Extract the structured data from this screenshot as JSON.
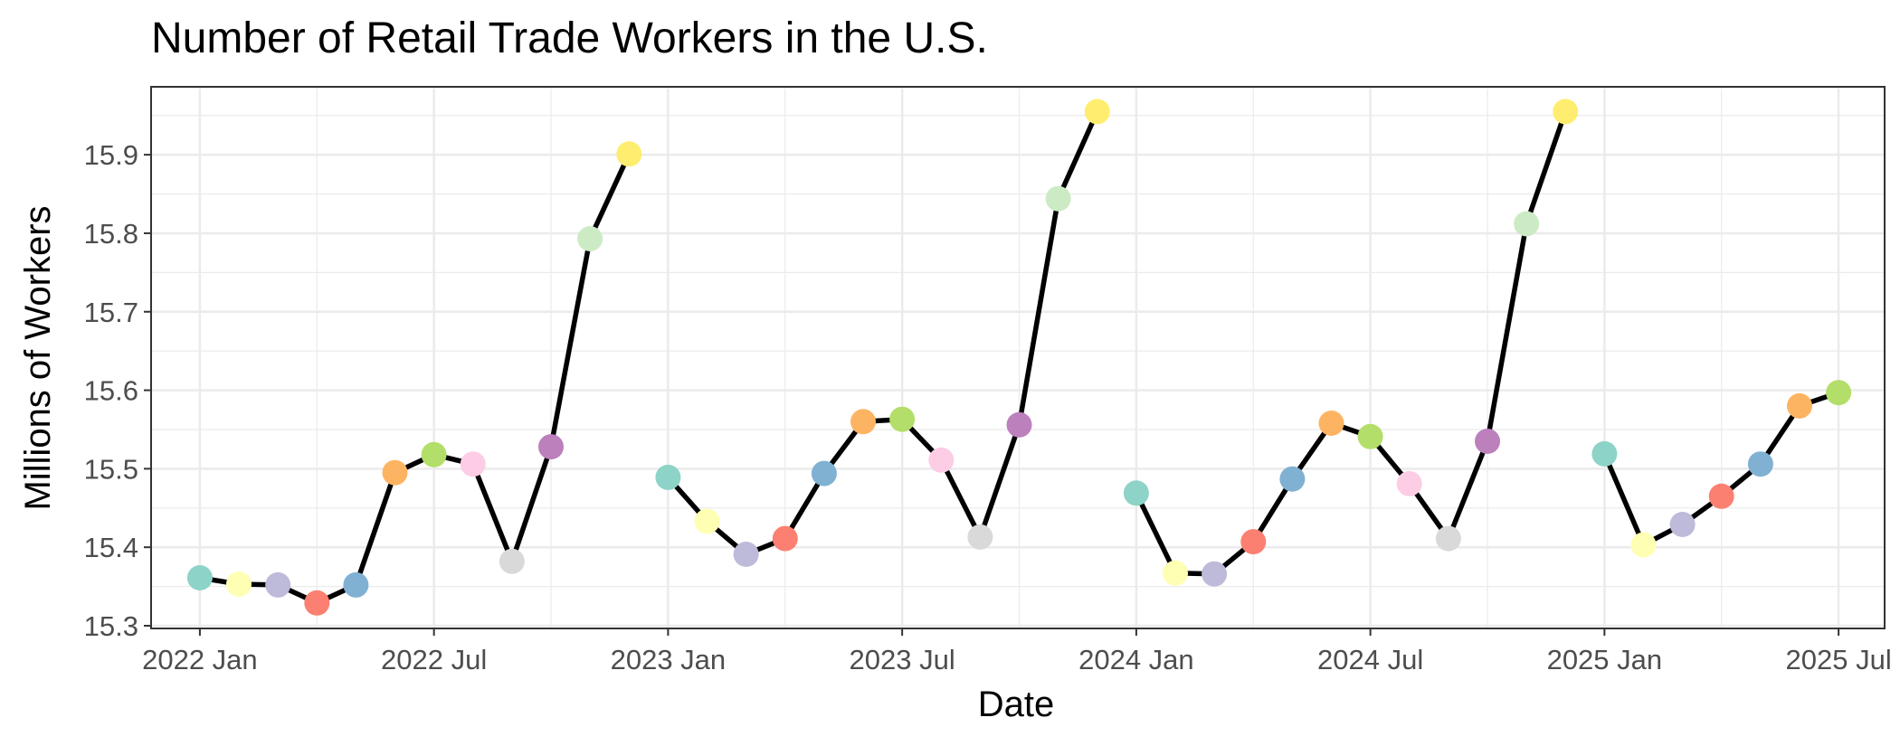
{
  "chart_data": {
    "type": "line",
    "title": "Number of Retail Trade Workers in the U.S.",
    "xlabel": "Date",
    "ylabel": "Millions of Workers",
    "ylim": [
      15.3,
      15.99
    ],
    "xlim": [
      "2021-12",
      "2025-08"
    ],
    "y_ticks": [
      15.3,
      15.4,
      15.5,
      15.6,
      15.7,
      15.8,
      15.9
    ],
    "x_ticks": [
      {
        "date": "2022-01",
        "label": "2022 Jan"
      },
      {
        "date": "2022-07",
        "label": "2022 Jul"
      },
      {
        "date": "2023-01",
        "label": "2023 Jan"
      },
      {
        "date": "2023-07",
        "label": "2023 Jul"
      },
      {
        "date": "2024-01",
        "label": "2024 Jan"
      },
      {
        "date": "2024-07",
        "label": "2024 Jul"
      },
      {
        "date": "2025-01",
        "label": "2025 Jan"
      },
      {
        "date": "2025-07",
        "label": "2025 Jul"
      }
    ],
    "grid": true,
    "legend": "none",
    "line_color": "#000000",
    "month_colors": [
      "#8DD3C7",
      "#FFFFB3",
      "#BEBADA",
      "#FB8072",
      "#80B1D3",
      "#FDB462",
      "#B3DE69",
      "#FCCDE5",
      "#D9D9D9",
      "#BC80BD",
      "#CCEBC5",
      "#FFED6F"
    ],
    "series": [
      {
        "values": [
          [
            "2022-01",
            15.361
          ],
          [
            "2022-02",
            15.353
          ],
          [
            "2022-03",
            15.352
          ],
          [
            "2022-04",
            15.329
          ],
          [
            "2022-05",
            15.352
          ],
          [
            "2022-06",
            15.495
          ],
          [
            "2022-07",
            15.518
          ],
          [
            "2022-08",
            15.506
          ],
          [
            "2022-09",
            15.382
          ],
          [
            "2022-10",
            15.528
          ],
          [
            "2022-11",
            15.793
          ],
          [
            "2022-12",
            15.901
          ]
        ]
      },
      {
        "values": [
          [
            "2023-01",
            15.489
          ],
          [
            "2023-02",
            15.433
          ],
          [
            "2023-03",
            15.391
          ],
          [
            "2023-04",
            15.411
          ],
          [
            "2023-05",
            15.494
          ],
          [
            "2023-06",
            15.56
          ],
          [
            "2023-07",
            15.563
          ],
          [
            "2023-08",
            15.511
          ],
          [
            "2023-09",
            15.413
          ],
          [
            "2023-10",
            15.556
          ],
          [
            "2023-11",
            15.844
          ],
          [
            "2023-12",
            15.955
          ]
        ]
      },
      {
        "values": [
          [
            "2024-01",
            15.469
          ],
          [
            "2024-02",
            15.367
          ],
          [
            "2024-03",
            15.366
          ],
          [
            "2024-04",
            15.407
          ],
          [
            "2024-05",
            15.487
          ],
          [
            "2024-06",
            15.558
          ],
          [
            "2024-07",
            15.541
          ],
          [
            "2024-08",
            15.481
          ],
          [
            "2024-09",
            15.411
          ],
          [
            "2024-10",
            15.535
          ],
          [
            "2024-11",
            15.812
          ],
          [
            "2024-12",
            15.955
          ]
        ]
      },
      {
        "values": [
          [
            "2025-01",
            15.519
          ],
          [
            "2025-02",
            15.403
          ],
          [
            "2025-03",
            15.429
          ],
          [
            "2025-04",
            15.465
          ],
          [
            "2025-05",
            15.506
          ],
          [
            "2025-06",
            15.58
          ],
          [
            "2025-07",
            15.597
          ]
        ]
      }
    ]
  }
}
